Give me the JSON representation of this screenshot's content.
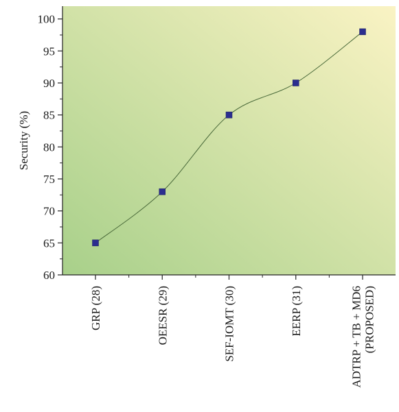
{
  "chart_data": {
    "type": "line",
    "title": "",
    "xlabel": "",
    "ylabel": "Security (%)",
    "ylim": [
      60,
      102
    ],
    "yticks": [
      60,
      65,
      70,
      75,
      80,
      85,
      90,
      95,
      100
    ],
    "categories": [
      "GRP (28)",
      "OEESR (29)",
      "SEF-IOMT (30)",
      "EERP (31)",
      "ADTRP + TB + MD6\n(PROPOSED)"
    ],
    "series": [
      {
        "values": [
          65,
          73,
          85,
          90,
          98
        ],
        "marker": "square",
        "line_style": "smooth"
      }
    ],
    "grid": false,
    "colors": {
      "marker": "#2b2e8f",
      "line": "#4a6a3a",
      "background_light": "#faf3c4",
      "background_dark": "#a8d08a"
    }
  }
}
